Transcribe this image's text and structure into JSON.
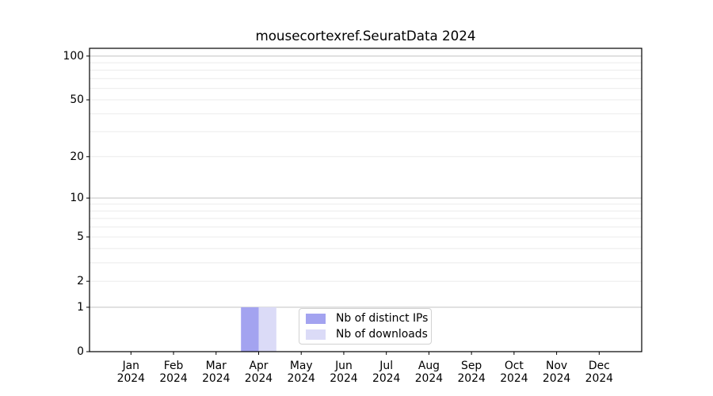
{
  "figure": {
    "background": "#ffffff"
  },
  "chart_data": {
    "type": "bar",
    "title": "mousecortexref.SeuratData 2024",
    "xlabel": "",
    "ylabel": "",
    "categories": [
      {
        "month": "Jan",
        "year": "2024"
      },
      {
        "month": "Feb",
        "year": "2024"
      },
      {
        "month": "Mar",
        "year": "2024"
      },
      {
        "month": "Apr",
        "year": "2024"
      },
      {
        "month": "May",
        "year": "2024"
      },
      {
        "month": "Jun",
        "year": "2024"
      },
      {
        "month": "Jul",
        "year": "2024"
      },
      {
        "month": "Aug",
        "year": "2024"
      },
      {
        "month": "Sep",
        "year": "2024"
      },
      {
        "month": "Oct",
        "year": "2024"
      },
      {
        "month": "Nov",
        "year": "2024"
      },
      {
        "month": "Dec",
        "year": "2024"
      }
    ],
    "series": [
      {
        "name": "Nb of distinct IPs",
        "color": "#a3a3f0",
        "values": [
          0,
          0,
          0,
          1,
          0,
          0,
          0,
          0,
          0,
          0,
          0,
          0
        ]
      },
      {
        "name": "Nb of downloads",
        "color": "#dbdbf7",
        "values": [
          0,
          0,
          0,
          1,
          0,
          0,
          0,
          0,
          0,
          0,
          0,
          0
        ]
      }
    ],
    "y_scale": "log1p",
    "ylim": [
      0,
      113
    ],
    "y_ticks": [
      0,
      1,
      2,
      5,
      10,
      20,
      50,
      100
    ],
    "gridlines": {
      "major": [
        1,
        10,
        100
      ],
      "minor": [
        2,
        3,
        4,
        5,
        6,
        7,
        8,
        9,
        20,
        30,
        40,
        50,
        60,
        70,
        80,
        90
      ]
    },
    "grid": true,
    "legend_position": "lower center",
    "colors": {
      "spine": "#000000",
      "tick_label": "#000000",
      "grid_minor": "#ebebeb",
      "grid_major": "#c9c9c9"
    }
  }
}
